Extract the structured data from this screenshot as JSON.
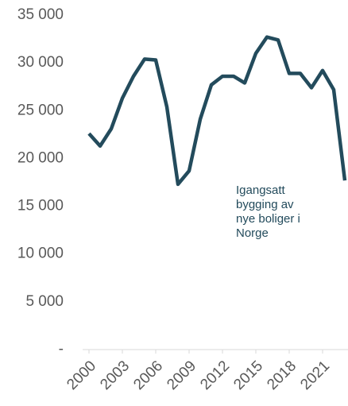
{
  "chart_data": {
    "type": "line",
    "x": [
      2000,
      2001,
      2002,
      2003,
      2004,
      2005,
      2006,
      2007,
      2008,
      2009,
      2010,
      2011,
      2012,
      2013,
      2014,
      2015,
      2016,
      2017,
      2018,
      2019,
      2020,
      2021,
      2022,
      2023
    ],
    "series": [
      {
        "name": "Igangsatt bygging av nye boliger i Norge",
        "color": "#234b5c",
        "values": [
          22600,
          21300,
          23100,
          26300,
          28600,
          30400,
          30300,
          25400,
          17300,
          18700,
          24100,
          27700,
          28600,
          28600,
          27900,
          31000,
          32700,
          32400,
          28900,
          28900,
          27400,
          29200,
          27200,
          17700
        ]
      }
    ],
    "annotation": [
      "Igangsatt",
      "bygging av",
      "nye boliger i",
      "Norge"
    ],
    "xlim": [
      2000,
      2023
    ],
    "xticks": [
      2000,
      2003,
      2006,
      2009,
      2012,
      2015,
      2018,
      2021
    ],
    "ylim": [
      0,
      35000
    ],
    "yticks": [
      {
        "value": 0,
        "label": "-"
      },
      {
        "value": 5000,
        "label": "5 000"
      },
      {
        "value": 10000,
        "label": "10 000"
      },
      {
        "value": 15000,
        "label": "15 000"
      },
      {
        "value": 20000,
        "label": "20 000"
      },
      {
        "value": 25000,
        "label": "25 000"
      },
      {
        "value": 30000,
        "label": "30 000"
      },
      {
        "value": 35000,
        "label": "35 000"
      }
    ],
    "grid": false
  }
}
